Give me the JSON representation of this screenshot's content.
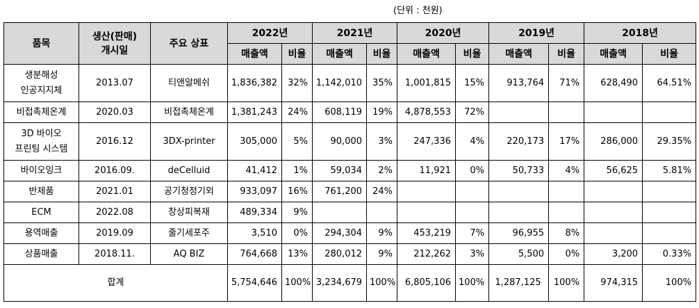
{
  "unit_note": "(단위 : 천원)",
  "headers": {
    "product": "품목",
    "launch": "생산(판매)\n개시일",
    "brand": "주요 상표",
    "years": [
      "2022년",
      "2021년",
      "2020년",
      "2019년",
      "2018년"
    ],
    "sales": "매출액",
    "ratio": "비율"
  },
  "rows": [
    {
      "product": "생분해성\n인공지지체",
      "launch": "2013.07",
      "brand": "티앤알메쉬",
      "cells": [
        "1,836,382",
        "32%",
        "1,142,010",
        "35%",
        "1,001,815",
        "15%",
        "913,764",
        "71%",
        "628,490",
        "64.51%"
      ]
    },
    {
      "product": "비접촉체온계",
      "launch": "2020.03",
      "brand": "비접촉체온계",
      "cells": [
        "1,381,243",
        "24%",
        "608,119",
        "19%",
        "4,878,553",
        "72%",
        "",
        "",
        "",
        ""
      ]
    },
    {
      "product": "3D 바이오\n프린팅 시스템",
      "launch": "2016.12",
      "brand": "3DX-printer",
      "cells": [
        "305,000",
        "5%",
        "90,000",
        "3%",
        "247,336",
        "4%",
        "220,173",
        "17%",
        "286,000",
        "29.35%"
      ]
    },
    {
      "product": "바이오잉크",
      "launch": "2016.09.",
      "brand": "deCelluid",
      "cells": [
        "41,412",
        "1%",
        "59,034",
        "2%",
        "11,921",
        "0%",
        "50,733",
        "4%",
        "56,625",
        "5.81%"
      ]
    },
    {
      "product": "반제품",
      "launch": "2021.01",
      "brand": "공기청정기외",
      "cells": [
        "933,097",
        "16%",
        "761,200",
        "24%",
        "",
        "",
        "",
        "",
        "",
        ""
      ]
    },
    {
      "product": "ECM",
      "launch": "2022.08",
      "brand": "창상피복재",
      "cells": [
        "489,334",
        "9%",
        "",
        "",
        "",
        "",
        "",
        "",
        "",
        ""
      ]
    },
    {
      "product": "용역매출",
      "launch": "2019.09",
      "brand": "줄기세포주",
      "cells": [
        "3,510",
        "0%",
        "294,304",
        "9%",
        "453,219",
        "7%",
        "96,955",
        "8%",
        "",
        ""
      ]
    },
    {
      "product": "상품매출",
      "launch": "2018.11.",
      "brand": "AQ BIZ",
      "cells": [
        "764,668",
        "13%",
        "280,012",
        "9%",
        "212,262",
        "3%",
        "5,500",
        "0%",
        "3,200",
        "0.33%"
      ]
    }
  ],
  "total": {
    "label": "합계",
    "cells": [
      "5,754,646",
      "100%",
      "3,234,679",
      "100%",
      "6,805,106",
      "100%",
      "1,287,125",
      "100%",
      "974,315",
      "100%"
    ]
  }
}
